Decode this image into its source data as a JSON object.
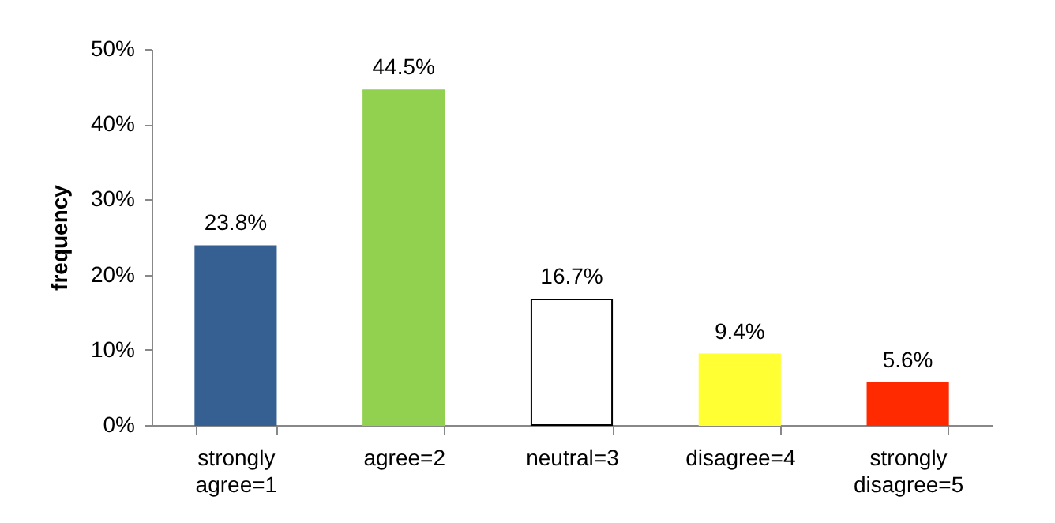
{
  "chart_data": {
    "type": "bar",
    "ylabel": "frequency",
    "categories": [
      "strongly agree=1",
      "agree=2",
      "neutral=3",
      "disagree=4",
      "strongly disagree=5"
    ],
    "values": [
      23.8,
      44.5,
      16.7,
      9.4,
      5.6
    ],
    "colors": [
      "#366092",
      "#92d050",
      "#ffffff",
      "#ffff33",
      "#ff2a00"
    ],
    "value_labels": [
      "23.8%",
      "44.5%",
      "16.7%",
      "9.4%",
      "5.6%"
    ],
    "ylim": [
      0,
      50
    ],
    "yticks": [
      {
        "value": 0,
        "label": "0%"
      },
      {
        "value": 10,
        "label": "10%"
      },
      {
        "value": 20,
        "label": "20%"
      },
      {
        "value": 30,
        "label": "30%"
      },
      {
        "value": 40,
        "label": "40%"
      },
      {
        "value": 50,
        "label": "50%"
      }
    ],
    "grid": false
  }
}
